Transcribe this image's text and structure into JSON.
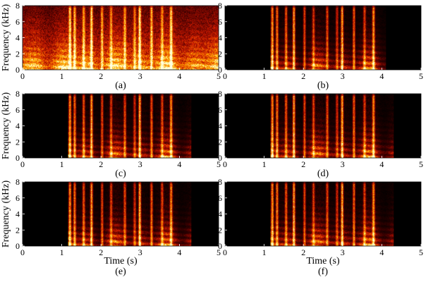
{
  "chart_data": [
    {
      "type": "heatmap",
      "panel_label": "(a)",
      "xlabel": "",
      "ylabel": "Frequency (kHz)",
      "xlim": [
        0,
        5
      ],
      "ylim": [
        0,
        8
      ],
      "xticks": [
        "0",
        "1",
        "2",
        "3",
        "4",
        "5"
      ],
      "yticks": [
        "0",
        "2",
        "4",
        "6",
        "8"
      ],
      "speech_region_s": [
        0.0,
        5.0
      ],
      "noise_floor": 0.55
    },
    {
      "type": "heatmap",
      "panel_label": "(b)",
      "xlabel": "",
      "ylabel": "",
      "xlim": [
        0,
        5
      ],
      "ylim": [
        0,
        8
      ],
      "xticks": [
        "0",
        "1",
        "2",
        "3",
        "4",
        "5"
      ],
      "yticks": [
        "0",
        "2",
        "4",
        "6",
        "8"
      ],
      "speech_region_s": [
        1.15,
        4.1
      ],
      "noise_floor": 0.0
    },
    {
      "type": "heatmap",
      "panel_label": "(c)",
      "xlabel": "",
      "ylabel": "Frequency (kHz)",
      "xlim": [
        0,
        5
      ],
      "ylim": [
        0,
        8
      ],
      "xticks": [
        "0",
        "1",
        "2",
        "3",
        "4",
        "5"
      ],
      "yticks": [
        "0",
        "2",
        "4",
        "6",
        "8"
      ],
      "speech_region_s": [
        1.15,
        4.3
      ],
      "noise_floor": 0.0
    },
    {
      "type": "heatmap",
      "panel_label": "(d)",
      "xlabel": "",
      "ylabel": "",
      "xlim": [
        0,
        5
      ],
      "ylim": [
        0,
        8
      ],
      "xticks": [
        "0",
        "1",
        "2",
        "3",
        "4",
        "5"
      ],
      "yticks": [
        "0",
        "2",
        "4",
        "6",
        "8"
      ],
      "speech_region_s": [
        1.15,
        4.3
      ],
      "noise_floor": 0.0
    },
    {
      "type": "heatmap",
      "panel_label": "(e)",
      "xlabel": "Time (s)",
      "ylabel": "Frequency (kHz)",
      "xlim": [
        0,
        5
      ],
      "ylim": [
        0,
        8
      ],
      "xticks": [
        "0",
        "1",
        "2",
        "3",
        "4",
        "5"
      ],
      "yticks": [
        "0",
        "2",
        "4",
        "6",
        "8"
      ],
      "speech_region_s": [
        1.15,
        4.3
      ],
      "noise_floor": 0.0
    },
    {
      "type": "heatmap",
      "panel_label": "(f)",
      "xlabel": "Time (s)",
      "ylabel": "",
      "xlim": [
        0,
        5
      ],
      "ylim": [
        0,
        8
      ],
      "xticks": [
        "0",
        "1",
        "2",
        "3",
        "4",
        "5"
      ],
      "yticks": [
        "0",
        "2",
        "4",
        "6",
        "8"
      ],
      "speech_region_s": [
        1.15,
        4.3
      ],
      "noise_floor": 0.0
    }
  ],
  "colormap": [
    "#000000",
    "#3a0000",
    "#8a0a00",
    "#d21e00",
    "#f06a00",
    "#ffb000",
    "#ffe870",
    "#ffffe0"
  ]
}
